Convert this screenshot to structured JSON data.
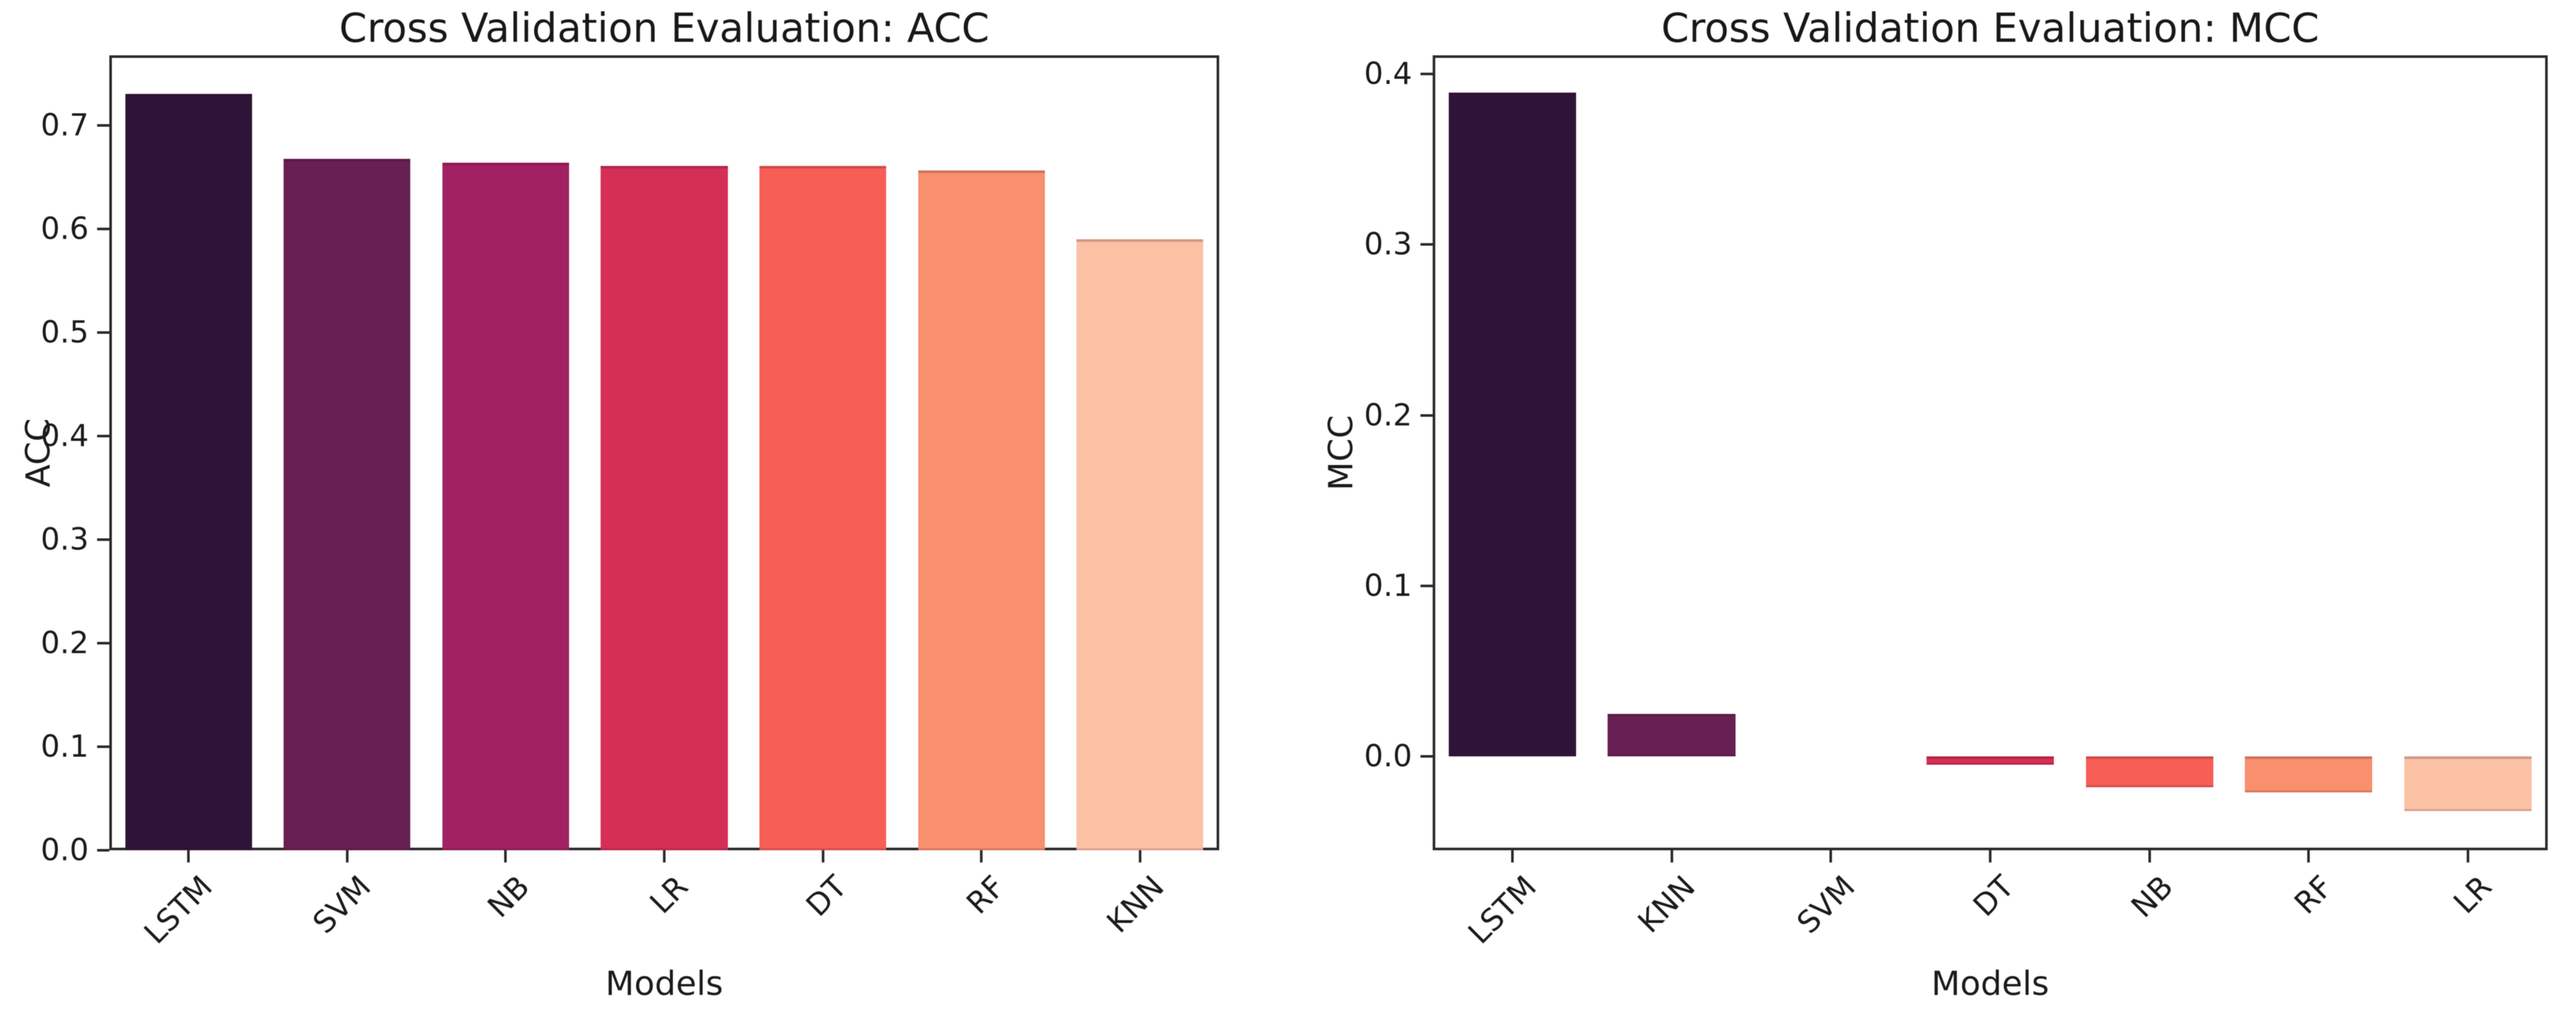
{
  "chart_data": [
    {
      "type": "bar",
      "title": "Cross Validation Evaluation: ACC",
      "xlabel": "Models",
      "ylabel": "ACC",
      "categories": [
        "LSTM",
        "SVM",
        "NB",
        "LR",
        "DT",
        "RF",
        "KNN"
      ],
      "values": [
        0.731,
        0.668,
        0.664,
        0.661,
        0.661,
        0.657,
        0.59
      ],
      "bar_colors": [
        "#2e1537",
        "#662051",
        "#a02263",
        "#d62f55",
        "#f65e56",
        "#f9906d",
        "#fbc1a4"
      ],
      "ylim": [
        0,
        0.768
      ],
      "yticks": [
        0,
        0.1,
        0.2,
        0.3,
        0.4,
        0.5,
        0.6,
        0.7
      ],
      "ytick_labels": [
        "0.0",
        "0.1",
        "0.2",
        "0.3",
        "0.4",
        "0.5",
        "0.6",
        "0.7"
      ],
      "grid": false,
      "legend": null
    },
    {
      "type": "bar",
      "title": "Cross Validation Evaluation: MCC",
      "xlabel": "Models",
      "ylabel": "MCC",
      "categories": [
        "LSTM",
        "KNN",
        "SVM",
        "DT",
        "NB",
        "RF",
        "LR"
      ],
      "values": [
        0.389,
        0.025,
        0.0,
        -0.005,
        -0.018,
        -0.021,
        -0.032
      ],
      "bar_colors": [
        "#2e1537",
        "#662051",
        "#a02263",
        "#d62f55",
        "#f65e56",
        "#f9906d",
        "#fbc1a4"
      ],
      "ylim": [
        -0.055,
        0.411
      ],
      "yticks": [
        0,
        0.1,
        0.2,
        0.3,
        0.4
      ],
      "ytick_labels": [
        "0.0",
        "0.1",
        "0.2",
        "0.3",
        "0.4"
      ],
      "grid": false,
      "legend": null
    }
  ]
}
